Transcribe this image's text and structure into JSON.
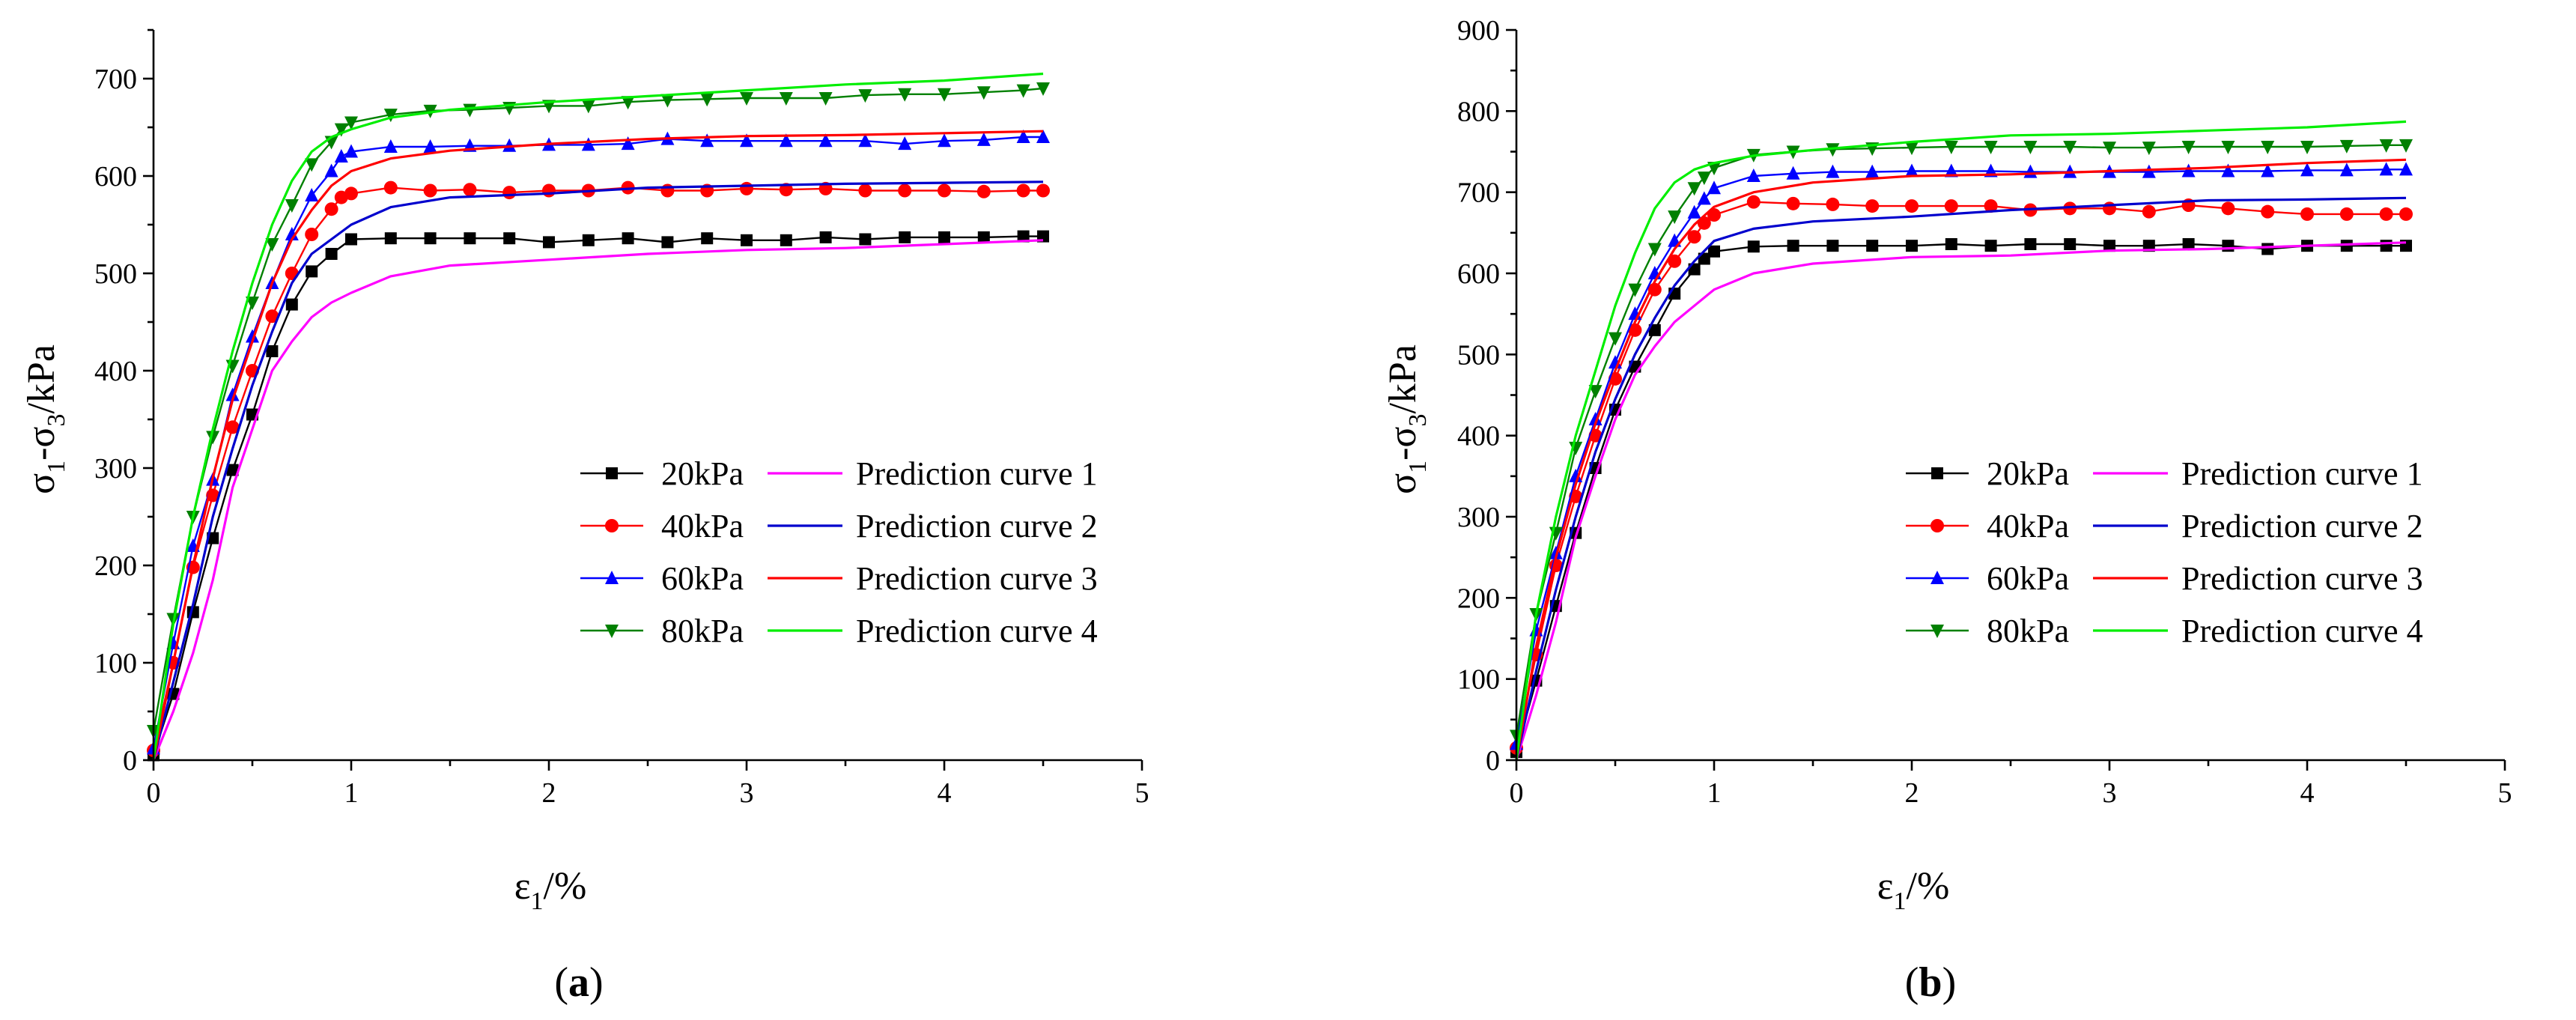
{
  "chart_data": [
    {
      "type": "line",
      "panel": "a",
      "panel_label": {
        "open": "(",
        "letter": "a",
        "close": ")"
      },
      "xlabel": {
        "sym": "ε",
        "sub": "1",
        "unit": "/%"
      },
      "ylabel": {
        "p1": "σ",
        "s1": "1",
        "dash": "-σ",
        "s2": "3",
        "unit": "/kPa"
      },
      "xlim": [
        0,
        5
      ],
      "ylim": [
        0,
        750
      ],
      "xticks": [
        0,
        1,
        2,
        3,
        4,
        5
      ],
      "yticks": [
        0,
        100,
        200,
        300,
        400,
        500,
        600,
        700
      ],
      "tick_labels_x": [
        "0",
        "1",
        "2",
        "3",
        "4",
        "5"
      ],
      "tick_labels_y": [
        "0",
        "100",
        "200",
        "300",
        "400",
        "500",
        "600",
        "700"
      ],
      "series": [
        {
          "name": "20kPa",
          "color": "#000000",
          "marker": "square",
          "x": [
            0,
            0.1,
            0.2,
            0.3,
            0.4,
            0.5,
            0.6,
            0.7,
            0.8,
            0.9,
            1.0,
            1.2,
            1.4,
            1.6,
            1.8,
            2.0,
            2.2,
            2.4,
            2.6,
            2.8,
            3.0,
            3.2,
            3.4,
            3.6,
            3.8,
            4.0,
            4.2,
            4.4,
            4.5
          ],
          "y": [
            5,
            68,
            152,
            228,
            298,
            355,
            420,
            468,
            502,
            520,
            535,
            536,
            536,
            536,
            536,
            532,
            534,
            536,
            532,
            536,
            534,
            534,
            537,
            535,
            537,
            537,
            537,
            538,
            538
          ]
        },
        {
          "name": "40kPa",
          "color": "#ff0000",
          "marker": "circle",
          "x": [
            0,
            0.1,
            0.2,
            0.3,
            0.4,
            0.5,
            0.6,
            0.7,
            0.8,
            0.9,
            0.95,
            1.0,
            1.2,
            1.4,
            1.6,
            1.8,
            2.0,
            2.2,
            2.4,
            2.6,
            2.8,
            3.0,
            3.2,
            3.4,
            3.6,
            3.8,
            4.0,
            4.2,
            4.4,
            4.5
          ],
          "y": [
            10,
            100,
            198,
            272,
            342,
            400,
            456,
            500,
            540,
            566,
            578,
            582,
            588,
            585,
            586,
            583,
            585,
            585,
            588,
            585,
            585,
            587,
            586,
            587,
            585,
            585,
            585,
            584,
            585,
            585
          ]
        },
        {
          "name": "60kPa",
          "color": "#0000ff",
          "marker": "triangle-up",
          "x": [
            0,
            0.1,
            0.2,
            0.3,
            0.4,
            0.5,
            0.6,
            0.7,
            0.8,
            0.9,
            0.95,
            1.0,
            1.2,
            1.4,
            1.6,
            1.8,
            2.0,
            2.2,
            2.4,
            2.6,
            2.8,
            3.0,
            3.2,
            3.4,
            3.6,
            3.8,
            4.0,
            4.2,
            4.4,
            4.5
          ],
          "y": [
            12,
            120,
            220,
            288,
            375,
            435,
            490,
            540,
            580,
            605,
            620,
            625,
            630,
            630,
            631,
            631,
            632,
            632,
            633,
            638,
            636,
            636,
            636,
            636,
            636,
            633,
            636,
            637,
            640,
            640
          ]
        },
        {
          "name": "80kPa",
          "color": "#008000",
          "marker": "triangle-down",
          "x": [
            0,
            0.1,
            0.2,
            0.3,
            0.4,
            0.5,
            0.6,
            0.7,
            0.8,
            0.9,
            0.95,
            1.0,
            1.2,
            1.4,
            1.6,
            1.8,
            2.0,
            2.2,
            2.4,
            2.6,
            2.8,
            3.0,
            3.2,
            3.4,
            3.6,
            3.8,
            4.0,
            4.2,
            4.4,
            4.5
          ],
          "y": [
            30,
            145,
            250,
            332,
            405,
            470,
            530,
            570,
            612,
            635,
            648,
            655,
            663,
            667,
            668,
            670,
            672,
            672,
            676,
            678,
            679,
            680,
            680,
            680,
            683,
            684,
            684,
            686,
            688,
            690
          ]
        },
        {
          "name": "Prediction curve 1",
          "color": "#ff00ff",
          "marker": "none",
          "x": [
            0,
            0.1,
            0.2,
            0.3,
            0.4,
            0.5,
            0.6,
            0.7,
            0.8,
            0.9,
            1.0,
            1.2,
            1.5,
            2.0,
            2.5,
            3.0,
            3.5,
            4.0,
            4.5
          ],
          "y": [
            0,
            50,
            110,
            185,
            280,
            340,
            400,
            430,
            455,
            470,
            480,
            497,
            508,
            514,
            520,
            524,
            526,
            530,
            534
          ]
        },
        {
          "name": "Prediction curve 2",
          "color": "#0000cd",
          "marker": "none",
          "x": [
            0,
            0.1,
            0.2,
            0.3,
            0.4,
            0.5,
            0.6,
            0.7,
            0.8,
            0.9,
            1.0,
            1.2,
            1.5,
            2.0,
            2.5,
            3.0,
            3.5,
            4.0,
            4.5
          ],
          "y": [
            0,
            80,
            160,
            250,
            320,
            385,
            440,
            490,
            520,
            535,
            550,
            568,
            578,
            582,
            588,
            590,
            592,
            593,
            594
          ]
        },
        {
          "name": "Prediction curve 3",
          "color": "#ff0000",
          "marker": "none",
          "x": [
            0,
            0.1,
            0.2,
            0.3,
            0.4,
            0.5,
            0.6,
            0.7,
            0.8,
            0.9,
            1.0,
            1.2,
            1.5,
            2.0,
            2.5,
            3.0,
            3.5,
            4.0,
            4.5
          ],
          "y": [
            0,
            100,
            200,
            290,
            370,
            430,
            490,
            535,
            565,
            590,
            605,
            618,
            626,
            633,
            638,
            641,
            642,
            644,
            646
          ]
        },
        {
          "name": "Prediction curve 4",
          "color": "#00ee00",
          "marker": "none",
          "x": [
            0,
            0.1,
            0.2,
            0.3,
            0.4,
            0.5,
            0.6,
            0.7,
            0.8,
            0.9,
            1.0,
            1.2,
            1.5,
            2.0,
            2.5,
            3.0,
            3.5,
            4.0,
            4.5
          ],
          "y": [
            0,
            140,
            250,
            340,
            420,
            490,
            550,
            595,
            625,
            640,
            648,
            660,
            668,
            676,
            682,
            688,
            694,
            698,
            705
          ]
        }
      ]
    },
    {
      "type": "line",
      "panel": "b",
      "panel_label": {
        "open": "(",
        "letter": "b",
        "close": ")"
      },
      "xlabel": {
        "sym": "ε",
        "sub": "1",
        "unit": "/%"
      },
      "ylabel": {
        "p1": "σ",
        "s1": "1",
        "dash": "-σ",
        "s2": "3",
        "unit": "/kPa"
      },
      "xlim": [
        0,
        5
      ],
      "ylim": [
        0,
        900
      ],
      "xticks": [
        0,
        1,
        2,
        3,
        4,
        5
      ],
      "yticks": [
        0,
        100,
        200,
        300,
        400,
        500,
        600,
        700,
        800,
        900
      ],
      "tick_labels_x": [
        "0",
        "1",
        "2",
        "3",
        "4",
        "5"
      ],
      "tick_labels_y": [
        "0",
        "100",
        "200",
        "300",
        "400",
        "500",
        "600",
        "700",
        "800",
        "900"
      ],
      "series": [
        {
          "name": "20kPa",
          "color": "#000000",
          "marker": "square",
          "x": [
            0,
            0.1,
            0.2,
            0.3,
            0.4,
            0.5,
            0.6,
            0.7,
            0.8,
            0.9,
            0.95,
            1.0,
            1.2,
            1.4,
            1.6,
            1.8,
            2.0,
            2.2,
            2.4,
            2.6,
            2.8,
            3.0,
            3.2,
            3.4,
            3.6,
            3.8,
            4.0,
            4.2,
            4.4,
            4.5
          ],
          "y": [
            10,
            98,
            190,
            280,
            360,
            432,
            485,
            530,
            575,
            605,
            618,
            627,
            633,
            634,
            634,
            634,
            634,
            636,
            634,
            636,
            636,
            634,
            634,
            636,
            634,
            630,
            634,
            634,
            634,
            634
          ]
        },
        {
          "name": "40kPa",
          "color": "#ff0000",
          "marker": "circle",
          "x": [
            0,
            0.1,
            0.2,
            0.3,
            0.4,
            0.5,
            0.6,
            0.7,
            0.8,
            0.9,
            0.95,
            1.0,
            1.2,
            1.4,
            1.6,
            1.8,
            2.0,
            2.2,
            2.4,
            2.6,
            2.8,
            3.0,
            3.2,
            3.4,
            3.6,
            3.8,
            4.0,
            4.2,
            4.4,
            4.5
          ],
          "y": [
            15,
            130,
            240,
            325,
            400,
            470,
            530,
            580,
            615,
            645,
            662,
            672,
            688,
            686,
            685,
            683,
            683,
            683,
            683,
            678,
            680,
            680,
            676,
            684,
            680,
            676,
            673,
            673,
            673,
            673
          ]
        },
        {
          "name": "60kPa",
          "color": "#0000ff",
          "marker": "triangle-up",
          "x": [
            0,
            0.1,
            0.2,
            0.3,
            0.4,
            0.5,
            0.6,
            0.7,
            0.8,
            0.9,
            0.95,
            1.0,
            1.2,
            1.4,
            1.6,
            1.8,
            2.0,
            2.2,
            2.4,
            2.6,
            2.8,
            3.0,
            3.2,
            3.4,
            3.6,
            3.8,
            4.0,
            4.2,
            4.4,
            4.5
          ],
          "y": [
            20,
            160,
            255,
            350,
            420,
            490,
            550,
            600,
            640,
            675,
            692,
            705,
            720,
            723,
            725,
            725,
            726,
            726,
            726,
            725,
            725,
            725,
            725,
            726,
            726,
            726,
            727,
            727,
            728,
            728
          ]
        },
        {
          "name": "80kPa",
          "color": "#008000",
          "marker": "triangle-down",
          "x": [
            0,
            0.1,
            0.2,
            0.3,
            0.4,
            0.5,
            0.6,
            0.7,
            0.8,
            0.9,
            0.95,
            1.0,
            1.2,
            1.4,
            1.6,
            1.8,
            2.0,
            2.2,
            2.4,
            2.6,
            2.8,
            3.0,
            3.2,
            3.4,
            3.6,
            3.8,
            4.0,
            4.2,
            4.4,
            4.5
          ],
          "y": [
            30,
            180,
            280,
            385,
            455,
            520,
            580,
            630,
            670,
            705,
            718,
            730,
            746,
            750,
            753,
            754,
            755,
            756,
            756,
            756,
            756,
            755,
            755,
            756,
            756,
            756,
            756,
            757,
            758,
            758
          ]
        },
        {
          "name": "Prediction curve 1",
          "color": "#ff00ff",
          "marker": "none",
          "x": [
            0,
            0.1,
            0.2,
            0.3,
            0.4,
            0.5,
            0.6,
            0.7,
            0.8,
            0.9,
            1.0,
            1.2,
            1.5,
            2.0,
            2.5,
            3.0,
            3.5,
            4.0,
            4.5
          ],
          "y": [
            0,
            80,
            170,
            275,
            350,
            420,
            475,
            510,
            540,
            560,
            580,
            600,
            612,
            620,
            622,
            628,
            630,
            634,
            638
          ]
        },
        {
          "name": "Prediction curve 2",
          "color": "#0000cd",
          "marker": "none",
          "x": [
            0,
            0.1,
            0.2,
            0.3,
            0.4,
            0.5,
            0.6,
            0.7,
            0.8,
            0.9,
            1.0,
            1.2,
            1.5,
            2.0,
            2.5,
            3.0,
            3.5,
            4.0,
            4.5
          ],
          "y": [
            0,
            110,
            210,
            300,
            380,
            445,
            500,
            545,
            585,
            615,
            640,
            655,
            664,
            670,
            678,
            684,
            690,
            691,
            693
          ]
        },
        {
          "name": "Prediction curve 3",
          "color": "#ff0000",
          "marker": "none",
          "x": [
            0,
            0.1,
            0.2,
            0.3,
            0.4,
            0.5,
            0.6,
            0.7,
            0.8,
            0.9,
            1.0,
            1.2,
            1.5,
            2.0,
            2.5,
            3.0,
            3.5,
            4.0,
            4.5
          ],
          "y": [
            0,
            140,
            250,
            340,
            415,
            480,
            540,
            590,
            630,
            660,
            682,
            700,
            712,
            720,
            722,
            726,
            730,
            736,
            740
          ]
        },
        {
          "name": "Prediction curve 4",
          "color": "#00ee00",
          "marker": "none",
          "x": [
            0,
            0.1,
            0.2,
            0.3,
            0.4,
            0.5,
            0.6,
            0.7,
            0.8,
            0.9,
            1.0,
            1.2,
            1.5,
            2.0,
            2.5,
            3.0,
            3.5,
            4.0,
            4.5
          ],
          "y": [
            0,
            180,
            300,
            400,
            480,
            560,
            625,
            680,
            712,
            728,
            736,
            745,
            752,
            762,
            770,
            772,
            776,
            780,
            787
          ]
        }
      ]
    }
  ]
}
